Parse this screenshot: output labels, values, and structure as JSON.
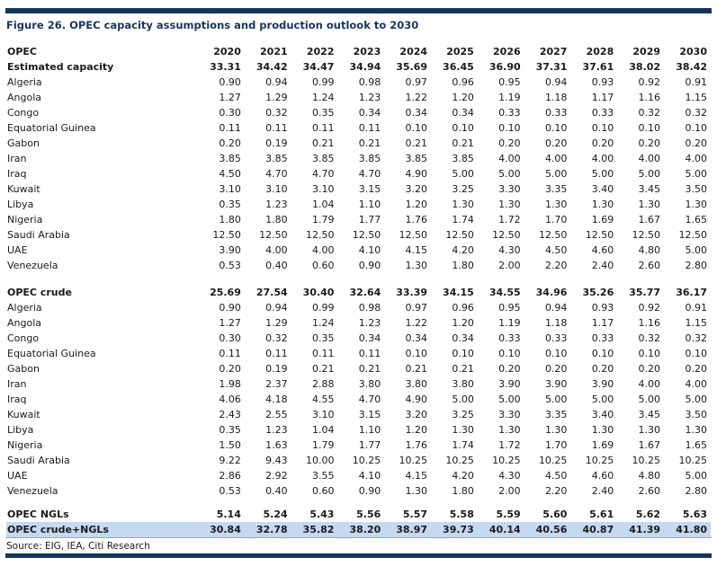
{
  "title": "Figure 26. OPEC capacity assumptions and production outlook to 2030",
  "source": "Source: EIG, IEA, Citi Research",
  "colors": {
    "navy": "#17365D",
    "highlight": "#C5D9F1",
    "text": "#1A1A1A",
    "rule": "#A6A6A6"
  },
  "table": {
    "columns": [
      "OPEC",
      "2020",
      "2021",
      "2022",
      "2023",
      "2024",
      "2025",
      "2026",
      "2027",
      "2028",
      "2029",
      "2030"
    ],
    "sections": [
      {
        "name": "estimated-capacity",
        "rows": [
          {
            "label": "Estimated capacity",
            "bold": true,
            "values": [
              "33.31",
              "34.42",
              "34.47",
              "34.94",
              "35.69",
              "36.45",
              "36.90",
              "37.31",
              "37.61",
              "38.02",
              "38.42"
            ]
          },
          {
            "label": "Algeria",
            "values": [
              "0.90",
              "0.94",
              "0.99",
              "0.98",
              "0.97",
              "0.96",
              "0.95",
              "0.94",
              "0.93",
              "0.92",
              "0.91"
            ]
          },
          {
            "label": "Angola",
            "values": [
              "1.27",
              "1.29",
              "1.24",
              "1.23",
              "1.22",
              "1.20",
              "1.19",
              "1.18",
              "1.17",
              "1.16",
              "1.15"
            ]
          },
          {
            "label": "Congo",
            "values": [
              "0.30",
              "0.32",
              "0.35",
              "0.34",
              "0.34",
              "0.34",
              "0.33",
              "0.33",
              "0.33",
              "0.32",
              "0.32"
            ]
          },
          {
            "label": "Equatorial Guinea",
            "values": [
              "0.11",
              "0.11",
              "0.11",
              "0.11",
              "0.10",
              "0.10",
              "0.10",
              "0.10",
              "0.10",
              "0.10",
              "0.10"
            ]
          },
          {
            "label": "Gabon",
            "values": [
              "0.20",
              "0.19",
              "0.21",
              "0.21",
              "0.21",
              "0.21",
              "0.20",
              "0.20",
              "0.20",
              "0.20",
              "0.20"
            ]
          },
          {
            "label": "Iran",
            "values": [
              "3.85",
              "3.85",
              "3.85",
              "3.85",
              "3.85",
              "3.85",
              "4.00",
              "4.00",
              "4.00",
              "4.00",
              "4.00"
            ]
          },
          {
            "label": "Iraq",
            "values": [
              "4.50",
              "4.70",
              "4.70",
              "4.70",
              "4.90",
              "5.00",
              "5.00",
              "5.00",
              "5.00",
              "5.00",
              "5.00"
            ]
          },
          {
            "label": "Kuwait",
            "values": [
              "3.10",
              "3.10",
              "3.10",
              "3.15",
              "3.20",
              "3.25",
              "3.30",
              "3.35",
              "3.40",
              "3.45",
              "3.50"
            ]
          },
          {
            "label": "Libya",
            "values": [
              "0.35",
              "1.23",
              "1.04",
              "1.10",
              "1.20",
              "1.30",
              "1.30",
              "1.30",
              "1.30",
              "1.30",
              "1.30"
            ]
          },
          {
            "label": "Nigeria",
            "values": [
              "1.80",
              "1.80",
              "1.79",
              "1.77",
              "1.76",
              "1.74",
              "1.72",
              "1.70",
              "1.69",
              "1.67",
              "1.65"
            ]
          },
          {
            "label": "Saudi Arabia",
            "values": [
              "12.50",
              "12.50",
              "12.50",
              "12.50",
              "12.50",
              "12.50",
              "12.50",
              "12.50",
              "12.50",
              "12.50",
              "12.50"
            ]
          },
          {
            "label": "UAE",
            "values": [
              "3.90",
              "4.00",
              "4.00",
              "4.10",
              "4.15",
              "4.20",
              "4.30",
              "4.50",
              "4.60",
              "4.80",
              "5.00"
            ]
          },
          {
            "label": "Venezuela",
            "values": [
              "0.53",
              "0.40",
              "0.60",
              "0.90",
              "1.30",
              "1.80",
              "2.00",
              "2.20",
              "2.40",
              "2.60",
              "2.80"
            ]
          }
        ]
      },
      {
        "name": "opec-crude",
        "rows": [
          {
            "label": "OPEC crude",
            "bold": true,
            "values": [
              "25.69",
              "27.54",
              "30.40",
              "32.64",
              "33.39",
              "34.15",
              "34.55",
              "34.96",
              "35.26",
              "35.77",
              "36.17"
            ]
          },
          {
            "label": "Algeria",
            "values": [
              "0.90",
              "0.94",
              "0.99",
              "0.98",
              "0.97",
              "0.96",
              "0.95",
              "0.94",
              "0.93",
              "0.92",
              "0.91"
            ]
          },
          {
            "label": "Angola",
            "values": [
              "1.27",
              "1.29",
              "1.24",
              "1.23",
              "1.22",
              "1.20",
              "1.19",
              "1.18",
              "1.17",
              "1.16",
              "1.15"
            ]
          },
          {
            "label": "Congo",
            "values": [
              "0.30",
              "0.32",
              "0.35",
              "0.34",
              "0.34",
              "0.34",
              "0.33",
              "0.33",
              "0.33",
              "0.32",
              "0.32"
            ]
          },
          {
            "label": "Equatorial Guinea",
            "values": [
              "0.11",
              "0.11",
              "0.11",
              "0.11",
              "0.10",
              "0.10",
              "0.10",
              "0.10",
              "0.10",
              "0.10",
              "0.10"
            ]
          },
          {
            "label": "Gabon",
            "values": [
              "0.20",
              "0.19",
              "0.21",
              "0.21",
              "0.21",
              "0.21",
              "0.20",
              "0.20",
              "0.20",
              "0.20",
              "0.20"
            ]
          },
          {
            "label": "Iran",
            "values": [
              "1.98",
              "2.37",
              "2.88",
              "3.80",
              "3.80",
              "3.80",
              "3.90",
              "3.90",
              "3.90",
              "4.00",
              "4.00"
            ]
          },
          {
            "label": "Iraq",
            "values": [
              "4.06",
              "4.18",
              "4.55",
              "4.70",
              "4.90",
              "5.00",
              "5.00",
              "5.00",
              "5.00",
              "5.00",
              "5.00"
            ]
          },
          {
            "label": "Kuwait",
            "values": [
              "2.43",
              "2.55",
              "3.10",
              "3.15",
              "3.20",
              "3.25",
              "3.30",
              "3.35",
              "3.40",
              "3.45",
              "3.50"
            ]
          },
          {
            "label": "Libya",
            "values": [
              "0.35",
              "1.23",
              "1.04",
              "1.10",
              "1.20",
              "1.30",
              "1.30",
              "1.30",
              "1.30",
              "1.30",
              "1.30"
            ]
          },
          {
            "label": "Nigeria",
            "values": [
              "1.50",
              "1.63",
              "1.79",
              "1.77",
              "1.76",
              "1.74",
              "1.72",
              "1.70",
              "1.69",
              "1.67",
              "1.65"
            ]
          },
          {
            "label": "Saudi Arabia",
            "values": [
              "9.22",
              "9.43",
              "10.00",
              "10.25",
              "10.25",
              "10.25",
              "10.25",
              "10.25",
              "10.25",
              "10.25",
              "10.25"
            ]
          },
          {
            "label": "UAE",
            "values": [
              "2.86",
              "2.92",
              "3.55",
              "4.10",
              "4.15",
              "4.20",
              "4.30",
              "4.50",
              "4.60",
              "4.80",
              "5.00"
            ]
          },
          {
            "label": "Venezuela",
            "values": [
              "0.53",
              "0.40",
              "0.60",
              "0.90",
              "1.30",
              "1.80",
              "2.00",
              "2.20",
              "2.40",
              "2.60",
              "2.80"
            ]
          }
        ]
      },
      {
        "name": "totals",
        "rows": [
          {
            "label": "OPEC NGLs",
            "bold": true,
            "values": [
              "5.14",
              "5.24",
              "5.43",
              "5.56",
              "5.57",
              "5.58",
              "5.59",
              "5.60",
              "5.61",
              "5.62",
              "5.63"
            ]
          },
          {
            "label": "OPEC crude+NGLs",
            "bold": true,
            "highlight": true,
            "values": [
              "30.84",
              "32.78",
              "35.82",
              "38.20",
              "38.97",
              "39.73",
              "40.14",
              "40.56",
              "40.87",
              "41.39",
              "41.80"
            ]
          }
        ]
      }
    ]
  }
}
